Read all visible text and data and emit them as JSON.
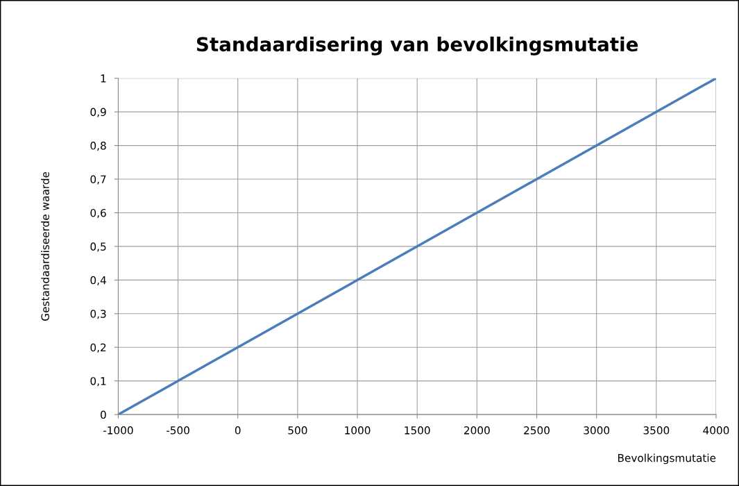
{
  "chart_data": {
    "type": "line",
    "title": "Standaardisering van bevolkingsmutatie",
    "xlabel": "Bevolkingsmutatie",
    "ylabel": "Gestandaardiseerde waarde",
    "x": [
      -1000,
      4000
    ],
    "series": [
      {
        "color": "#4a7ebb",
        "values": [
          0,
          1
        ]
      }
    ],
    "xlim": [
      -1000,
      4000
    ],
    "xticks": [
      -1000,
      -500,
      0,
      500,
      1000,
      1500,
      2000,
      2500,
      3000,
      3500,
      4000
    ],
    "ylim": [
      0,
      1
    ],
    "yticks": [
      0,
      {
        "value": 0.1,
        "label": "0,1"
      },
      {
        "value": 0.2,
        "label": "0,2"
      },
      {
        "value": 0.3,
        "label": "0,3"
      },
      {
        "value": 0.4,
        "label": "0,4"
      },
      {
        "value": 0.5,
        "label": "0,5"
      },
      {
        "value": 0.6,
        "label": "0,6"
      },
      {
        "value": 0.7,
        "label": "0,7"
      },
      {
        "value": 0.8,
        "label": "0,8"
      },
      {
        "value": 0.9,
        "label": "0,9"
      },
      1
    ],
    "grid": true,
    "legend": false,
    "marker": "none",
    "line_style": "solid"
  }
}
